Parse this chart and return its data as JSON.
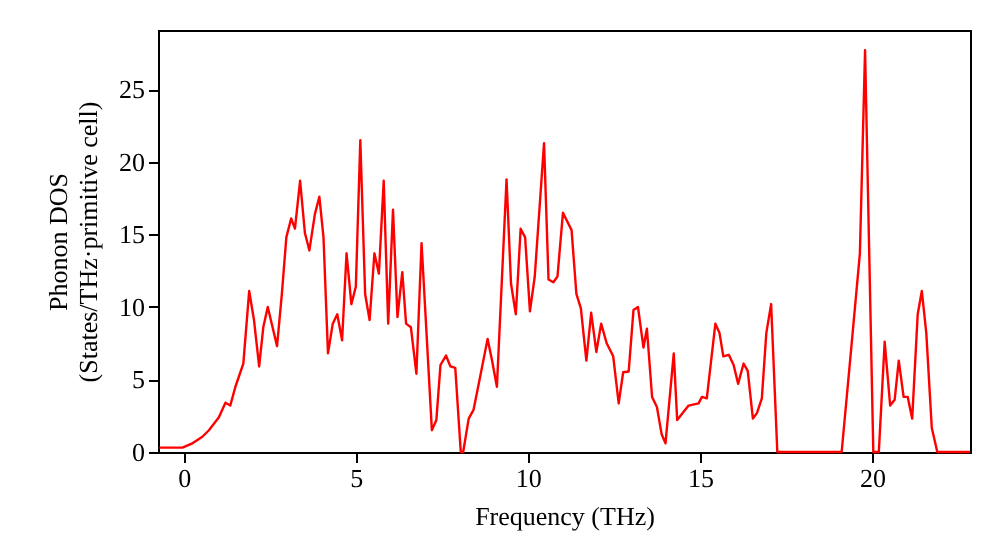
{
  "chart_data": {
    "type": "line",
    "xlabel": "Frequency (THz)",
    "ylabel": "Phonon DOS\n(States/THz·primitive cell)",
    "xlim": [
      -0.75,
      22.85
    ],
    "ylim": [
      0,
      29.1
    ],
    "xticks": [
      0,
      5,
      10,
      15,
      20
    ],
    "yticks": [
      0,
      5,
      10,
      15,
      20,
      25
    ],
    "grid": false,
    "line_style": "solid",
    "marker": "none",
    "x": [
      -0.71,
      -0.04,
      0.25,
      0.54,
      0.73,
      1.02,
      1.21,
      1.35,
      1.5,
      1.73,
      1.9,
      2.04,
      2.19,
      2.31,
      2.44,
      2.58,
      2.71,
      2.85,
      2.98,
      3.12,
      3.23,
      3.38,
      3.52,
      3.65,
      3.81,
      3.94,
      4.06,
      4.19,
      4.33,
      4.46,
      4.6,
      4.73,
      4.87,
      5.0,
      5.13,
      5.27,
      5.4,
      5.54,
      5.67,
      5.81,
      5.94,
      6.08,
      6.21,
      6.35,
      6.46,
      6.6,
      6.76,
      6.91,
      7.21,
      7.34,
      7.46,
      7.62,
      7.75,
      7.89,
      8.05,
      8.12,
      8.28,
      8.42,
      8.63,
      8.83,
      8.96,
      9.1,
      9.38,
      9.51,
      9.65,
      9.79,
      9.92,
      10.06,
      10.2,
      10.47,
      10.6,
      10.74,
      10.86,
      11.02,
      11.27,
      11.41,
      11.54,
      11.7,
      11.84,
      11.99,
      12.13,
      12.29,
      12.48,
      12.64,
      12.77,
      12.93,
      13.07,
      13.2,
      13.36,
      13.46,
      13.61,
      13.75,
      13.89,
      14.0,
      14.24,
      14.34,
      14.67,
      14.96,
      15.06,
      15.2,
      15.45,
      15.57,
      15.68,
      15.84,
      15.98,
      16.11,
      16.27,
      16.39,
      16.54,
      16.66,
      16.8,
      16.93,
      17.07,
      17.25,
      19.12,
      19.4,
      19.65,
      19.8,
      20.04,
      20.2,
      20.37,
      20.53,
      20.66,
      20.78,
      20.92,
      21.04,
      21.17,
      21.33,
      21.45,
      21.58,
      21.74,
      21.9,
      22.85
    ],
    "series": [
      {
        "color": "#ff0000",
        "values": [
          0.3,
          0.3,
          0.6,
          1.05,
          1.5,
          2.4,
          3.4,
          3.2,
          4.5,
          6.1,
          11.1,
          9.1,
          5.9,
          8.6,
          10.0,
          8.6,
          7.3,
          10.9,
          14.8,
          16.1,
          15.4,
          18.7,
          15.1,
          13.9,
          16.4,
          17.6,
          14.8,
          6.8,
          8.85,
          9.5,
          7.7,
          13.7,
          10.2,
          11.4,
          21.5,
          10.9,
          9.1,
          13.7,
          12.3,
          18.7,
          8.85,
          16.7,
          9.3,
          12.4,
          8.85,
          8.6,
          5.4,
          14.4,
          1.5,
          2.2,
          6.0,
          6.65,
          5.9,
          5.8,
          0,
          0,
          2.3,
          2.9,
          5.4,
          7.8,
          6.3,
          4.5,
          18.8,
          11.6,
          9.5,
          15.4,
          14.8,
          9.7,
          12.1,
          21.3,
          11.9,
          11.7,
          12.1,
          16.5,
          15.3,
          10.9,
          9.9,
          6.3,
          9.6,
          6.9,
          8.85,
          7.5,
          6.6,
          3.35,
          5.5,
          5.55,
          9.8,
          10.0,
          7.2,
          8.5,
          3.8,
          3.1,
          1.2,
          0.6,
          6.8,
          2.2,
          3.2,
          3.35,
          3.8,
          3.7,
          8.85,
          8.2,
          6.6,
          6.7,
          6.0,
          4.7,
          6.1,
          5.6,
          2.3,
          2.7,
          3.7,
          8.2,
          10.2,
          0,
          0,
          7.2,
          13.7,
          27.7,
          0,
          0,
          7.6,
          3.2,
          3.6,
          6.3,
          3.8,
          3.8,
          2.3,
          9.5,
          11.1,
          8.2,
          1.65,
          0,
          0
        ]
      }
    ]
  }
}
